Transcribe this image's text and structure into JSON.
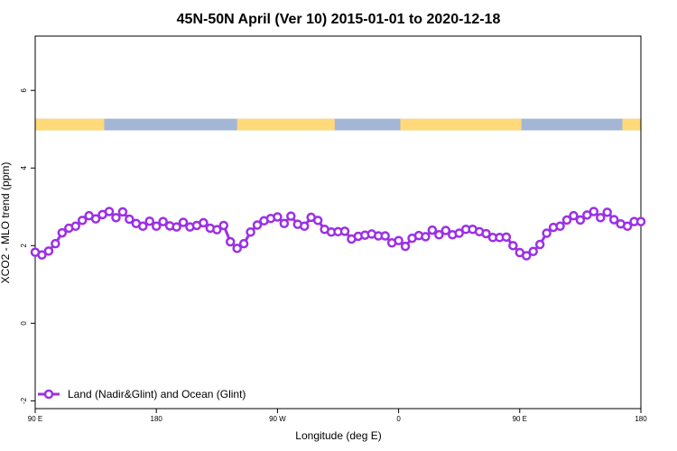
{
  "chart_data": {
    "type": "line",
    "title": "45N-50N April (Ver 10)   2015-01-01 to 2020-12-18",
    "xlabel": "Longitude (deg E)",
    "ylabel": "XCO2 - MLO trend (ppm)",
    "xlim": [
      90,
      450
    ],
    "ylim": [
      -2.2,
      7.4
    ],
    "x_ticks": [
      {
        "value": 90,
        "label": "90 E"
      },
      {
        "value": 162,
        "label": "180"
      },
      {
        "value": 234,
        "label": "90 W"
      },
      {
        "value": 306,
        "label": "0"
      },
      {
        "value": 378,
        "label": "90 E"
      },
      {
        "value": 450,
        "label": "180"
      }
    ],
    "y_ticks": [
      {
        "value": -2,
        "label": "-2"
      },
      {
        "value": 0,
        "label": "0"
      },
      {
        "value": 2,
        "label": "2"
      },
      {
        "value": 4,
        "label": "4"
      },
      {
        "value": 6,
        "label": "6"
      }
    ],
    "legend": {
      "position": "bottom-left"
    },
    "land_ocean_band": {
      "y_range": [
        4.97,
        5.27
      ],
      "land_color": "#ffd97a",
      "ocean_color": "#a3b6d6",
      "land_segments": [
        [
          90,
          131
        ],
        [
          210,
          268
        ],
        [
          307,
          379
        ],
        [
          439,
          450
        ]
      ]
    },
    "series": [
      {
        "name": "Land (Nadir&Glint) and Ocean (Glint)",
        "color": "#9b30e6",
        "x": [
          90,
          94,
          98,
          102,
          106,
          110,
          114,
          118,
          122,
          126,
          130,
          134,
          138,
          142,
          146,
          150,
          154,
          158,
          162,
          166,
          170,
          174,
          178,
          182,
          186,
          190,
          194,
          198,
          202,
          206,
          210,
          214,
          218,
          222,
          226,
          230,
          234,
          238,
          242,
          246,
          250,
          254,
          258,
          262,
          266,
          270,
          274,
          278,
          282,
          286,
          290,
          294,
          298,
          302,
          306,
          310,
          314,
          318,
          322,
          326,
          330,
          334,
          338,
          342,
          346,
          350,
          354,
          358,
          362,
          366,
          370,
          374,
          378,
          382,
          386,
          390,
          394,
          398,
          402,
          406,
          410,
          414,
          418,
          422,
          426,
          430,
          434,
          438,
          442,
          446,
          450
        ],
        "values": [
          1.83,
          1.76,
          1.86,
          2.05,
          2.33,
          2.45,
          2.5,
          2.65,
          2.77,
          2.69,
          2.8,
          2.88,
          2.72,
          2.87,
          2.68,
          2.57,
          2.5,
          2.63,
          2.5,
          2.62,
          2.51,
          2.48,
          2.6,
          2.48,
          2.52,
          2.59,
          2.45,
          2.41,
          2.52,
          2.1,
          1.93,
          2.05,
          2.35,
          2.53,
          2.64,
          2.7,
          2.74,
          2.57,
          2.76,
          2.55,
          2.5,
          2.73,
          2.65,
          2.42,
          2.35,
          2.36,
          2.37,
          2.17,
          2.24,
          2.27,
          2.3,
          2.25,
          2.25,
          2.07,
          2.13,
          1.98,
          2.19,
          2.26,
          2.23,
          2.4,
          2.28,
          2.39,
          2.28,
          2.32,
          2.42,
          2.42,
          2.36,
          2.31,
          2.21,
          2.21,
          2.22,
          2.0,
          1.82,
          1.74,
          1.85,
          2.03,
          2.32,
          2.47,
          2.5,
          2.66,
          2.77,
          2.66,
          2.79,
          2.88,
          2.72,
          2.86,
          2.67,
          2.56,
          2.5,
          2.62,
          2.62
        ]
      }
    ]
  }
}
